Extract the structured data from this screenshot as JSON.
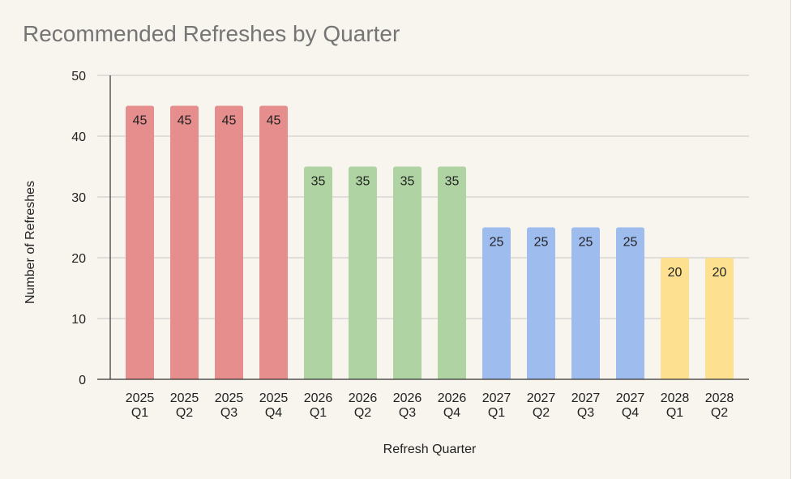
{
  "chart_data": {
    "type": "bar",
    "title": "Recommended Refreshes by Quarter",
    "xlabel": "Refresh Quarter",
    "ylabel": "Number of Refreshes",
    "ylim": [
      0,
      50
    ],
    "yticks": [
      0,
      10,
      20,
      30,
      40,
      50
    ],
    "grid": true,
    "legend": "none",
    "categories": [
      [
        "2025",
        "Q1"
      ],
      [
        "2025",
        "Q2"
      ],
      [
        "2025",
        "Q3"
      ],
      [
        "2025",
        "Q4"
      ],
      [
        "2026",
        "Q1"
      ],
      [
        "2026",
        "Q2"
      ],
      [
        "2026",
        "Q3"
      ],
      [
        "2026",
        "Q4"
      ],
      [
        "2027",
        "Q1"
      ],
      [
        "2027",
        "Q2"
      ],
      [
        "2027",
        "Q3"
      ],
      [
        "2027",
        "Q4"
      ],
      [
        "2028",
        "Q1"
      ],
      [
        "2028",
        "Q2"
      ]
    ],
    "values": [
      45,
      45,
      45,
      45,
      35,
      35,
      35,
      35,
      25,
      25,
      25,
      25,
      20,
      20
    ],
    "bar_colors": [
      "#e68e8e",
      "#e68e8e",
      "#e68e8e",
      "#e68e8e",
      "#afd3a2",
      "#afd3a2",
      "#afd3a2",
      "#afd3a2",
      "#9fbcef",
      "#9fbcef",
      "#9fbcef",
      "#9fbcef",
      "#fde190",
      "#fde190"
    ],
    "data_labels": true
  }
}
